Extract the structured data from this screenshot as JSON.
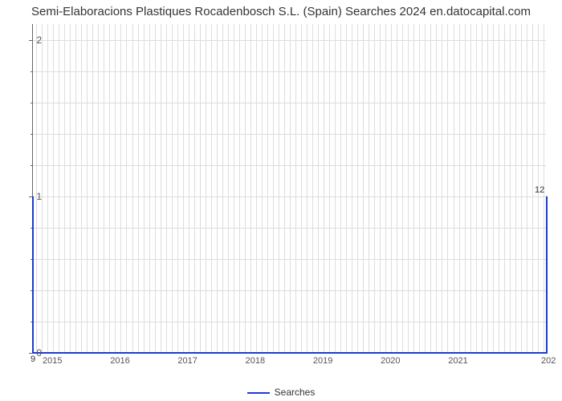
{
  "chart": {
    "type": "line",
    "title": "Semi-Elaboracions Plastiques Rocadenbosch S.L. (Spain) Searches 2024 en.datocapital.com",
    "title_fontsize": 15,
    "title_color": "#333333",
    "background_color": "#ffffff",
    "grid_color": "#dddddd",
    "axis_color": "#666666",
    "line_color": "#1a3cd6",
    "line_width": 2,
    "xlim": [
      2014.7,
      2022.3
    ],
    "ylim": [
      0,
      2.1
    ],
    "ytick_values": [
      0,
      1,
      2
    ],
    "ytick_minor_count": 4,
    "xtick_values": [
      2015,
      2016,
      2017,
      2018,
      2019,
      2020,
      2021
    ],
    "xtick_partial_right": "202",
    "data_x": [
      2014.7,
      2022.3
    ],
    "data_y": [
      0,
      0
    ],
    "endpoint_left": {
      "x": 2014.7,
      "y_peak": 1.0,
      "label": "9"
    },
    "endpoint_right": {
      "x": 2022.3,
      "y_peak": 1.0,
      "label": "12"
    },
    "legend_label": "Searches",
    "tick_label_fontsize": 12,
    "tick_label_color": "#555555"
  }
}
